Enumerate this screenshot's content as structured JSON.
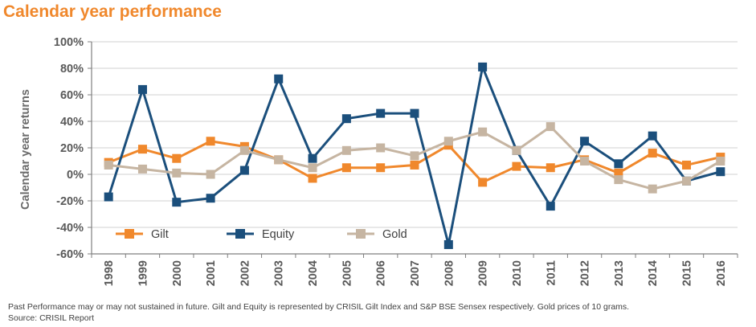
{
  "chart_data": {
    "type": "line",
    "title": "Calendar year performance",
    "ylabel": "Calendar year returns",
    "xlabel": "",
    "ylim": [
      -60,
      100
    ],
    "ytick_step": 20,
    "ytick_labels": [
      "100%",
      "80%",
      "60%",
      "40%",
      "20%",
      "0%",
      "-20%",
      "-40%",
      "-60%"
    ],
    "categories": [
      "1998",
      "1999",
      "2000",
      "2001",
      "2002",
      "2003",
      "2004",
      "2005",
      "2006",
      "2007",
      "2008",
      "2009",
      "2010",
      "2011",
      "2012",
      "2013",
      "2014",
      "2015",
      "2016"
    ],
    "series": [
      {
        "name": "Gilt",
        "color": "#f0882c",
        "values": [
          9,
          19,
          12,
          25,
          21,
          11,
          -3,
          5,
          5,
          7,
          22,
          -6,
          6,
          5,
          11,
          1,
          16,
          7,
          13
        ]
      },
      {
        "name": "Equity",
        "color": "#1b4f7c",
        "values": [
          -17,
          64,
          -21,
          -18,
          3,
          72,
          12,
          42,
          46,
          46,
          -53,
          81,
          18,
          -24,
          25,
          8,
          29,
          -5,
          2
        ]
      },
      {
        "name": "Gold",
        "color": "#c6b5a2",
        "values": [
          7,
          4,
          1,
          0,
          18,
          11,
          5,
          18,
          20,
          14,
          25,
          32,
          18,
          36,
          10,
          -4,
          -11,
          -5,
          10
        ]
      }
    ],
    "legend_position": "lower-left inside plot"
  },
  "footnote": {
    "line1": "Past Performance may or may not sustained in future. Gilt and Equity is represented by CRISIL Gilt Index and S&P BSE Sensex respectively. Gold prices of 10 grams.",
    "line2": "Source: CRISIL Report"
  }
}
